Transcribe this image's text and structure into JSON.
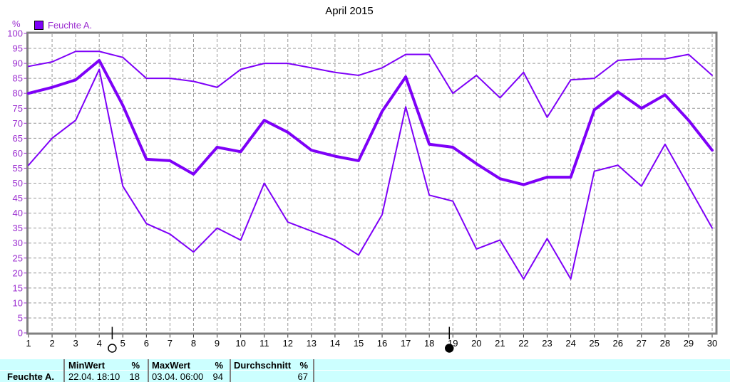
{
  "title": "April 2015",
  "axis": {
    "unit": "%"
  },
  "legend": {
    "label": "Feuchte A.",
    "color": "#7e00f8"
  },
  "colors": {
    "line": "#7e00f8",
    "axis_text": "#9c2fd0",
    "grid": "#999999",
    "frame": "#808080",
    "table_bg": "#ccffff"
  },
  "chart_data": {
    "type": "line",
    "title": "April 2015",
    "xlabel": "",
    "ylabel": "%",
    "ylim": [
      0,
      100
    ],
    "ytick_step": 5,
    "grid": true,
    "x": [
      1,
      2,
      3,
      4,
      5,
      6,
      7,
      8,
      9,
      10,
      11,
      12,
      13,
      14,
      15,
      16,
      17,
      18,
      19,
      20,
      21,
      22,
      23,
      24,
      25,
      26,
      27,
      28,
      29,
      30
    ],
    "line_color": "#7e00f8",
    "series": [
      {
        "name": "max",
        "values": [
          89,
          90.5,
          94,
          94,
          92,
          85,
          85,
          84,
          82,
          88,
          90,
          90,
          88.5,
          87,
          86,
          88.5,
          93,
          93,
          80,
          86,
          78.5,
          87,
          72,
          84.5,
          85,
          91,
          91.5,
          91.5,
          93,
          86
        ]
      },
      {
        "name": "feuchte-a-average",
        "thick": true,
        "values": [
          80,
          82,
          84.5,
          91,
          76,
          58,
          57.5,
          53,
          62,
          60.5,
          71,
          67,
          61,
          59,
          57.5,
          74,
          85.5,
          63,
          62,
          56.5,
          51.5,
          49.5,
          52,
          52,
          74.5,
          80.5,
          75,
          79.5,
          71,
          61
        ]
      },
      {
        "name": "min",
        "values": [
          56,
          65,
          71,
          88,
          49,
          36.5,
          33,
          27,
          35,
          31,
          50,
          37,
          34,
          31,
          26,
          39.5,
          75.5,
          46,
          44,
          28,
          31,
          18,
          31.5,
          18,
          54,
          56,
          49,
          63,
          49,
          35
        ]
      }
    ],
    "markers": [
      {
        "name": "full-moon",
        "day": 4.55,
        "symbol": "open-circle"
      },
      {
        "name": "new-moon",
        "day": 18.85,
        "symbol": "filled-circle"
      }
    ]
  },
  "table": {
    "row_label": "Feuchte A.",
    "columns": [
      {
        "header": "MinWert",
        "unit": "%",
        "datetime": "22.04.  18:10",
        "value": "18"
      },
      {
        "header": "MaxWert",
        "unit": "%",
        "datetime": "03.04.  06:00",
        "value": "94"
      },
      {
        "header": "Durchschnitt",
        "unit": "%",
        "datetime": "",
        "value": "67"
      }
    ]
  }
}
